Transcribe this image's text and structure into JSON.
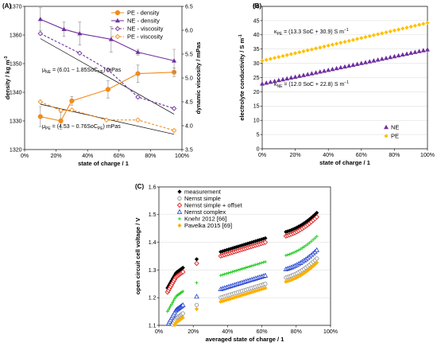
{
  "chart_data": [
    {
      "panel_label": "(A)",
      "type": "scatter",
      "xlabel": "state of charge / 1",
      "ylabel": "density / kg m",
      "ylabel_sup": "-3",
      "y2label": "dynamic viscosity / mPas",
      "xlim": [
        0,
        1
      ],
      "ylim": [
        1320,
        1370
      ],
      "y2lim": [
        3.5,
        6.5
      ],
      "xticks": [
        "0%",
        "20%",
        "40%",
        "60%",
        "80%",
        "100%"
      ],
      "yticks": [
        "1320",
        "1330",
        "1340",
        "1350",
        "1360",
        "1370"
      ],
      "y2ticks": [
        "3.5",
        "4.0",
        "4.5",
        "5.0",
        "5.5",
        "6.0",
        "6.5"
      ],
      "legend_position": "top-right",
      "series": [
        {
          "name": "PE - density",
          "axis": "left",
          "color": "#f28b1c",
          "marker": "circle-filled",
          "line": "solid",
          "x": [
            0.1,
            0.23,
            0.3,
            0.53,
            0.72,
            0.95
          ],
          "y": [
            1331.5,
            1330,
            1337,
            1341,
            1346.5,
            1347
          ],
          "err": [
            3.5,
            3,
            1.5,
            3,
            3,
            1.5
          ]
        },
        {
          "name": "NE - density",
          "axis": "left",
          "color": "#7030a0",
          "marker": "triangle-filled",
          "line": "solid",
          "x": [
            0.1,
            0.25,
            0.35,
            0.55,
            0.72,
            0.95
          ],
          "y": [
            1365.5,
            1362,
            1360.5,
            1358.5,
            1354,
            1351
          ],
          "err": [
            4,
            2.5,
            4,
            4.5,
            1,
            4
          ]
        },
        {
          "name": "NE - viscosity",
          "axis": "right",
          "color": "#7030a0",
          "marker": "diamond-open",
          "line": "dashed",
          "x": [
            0.1,
            0.35,
            0.53,
            0.72,
            0.95
          ],
          "y": [
            5.93,
            5.52,
            5.17,
            4.6,
            4.36
          ]
        },
        {
          "name": "PE - viscosity",
          "axis": "right",
          "color": "#f28b1c",
          "marker": "diamond-open",
          "line": "dashed",
          "x": [
            0.1,
            0.23,
            0.3,
            0.52,
            0.72,
            0.95
          ],
          "y": [
            4.5,
            4.32,
            4.33,
            4.12,
            4.12,
            3.9
          ]
        }
      ],
      "fits": [
        {
          "axis": "right",
          "from": [
            0.1,
            5.825
          ],
          "to": [
            0.95,
            4.24
          ]
        },
        {
          "axis": "right",
          "from": [
            0.1,
            4.45
          ],
          "to": [
            0.95,
            3.82
          ]
        }
      ],
      "annotations": [
        {
          "main": "μ",
          "sub": "NE",
          "rest": " = (6.01 − 1.85SoC",
          "sub2": "NE",
          "end": ") mPas"
        },
        {
          "main": "μ",
          "sub": "PE",
          "rest": " = (4.53 − 0.76SoC",
          "sub2": "PE",
          "end": ") mPas"
        }
      ]
    },
    {
      "panel_label": "(B)",
      "type": "scatter",
      "xlabel": "state of charge / 1",
      "ylabel": "electrolyte conductivity / S m",
      "ylabel_sup": "-1",
      "xlim": [
        0,
        1
      ],
      "ylim": [
        0,
        50
      ],
      "xticks": [
        "0%",
        "20%",
        "40%",
        "60%",
        "80%",
        "100%"
      ],
      "yticks": [
        "0",
        "5",
        "10",
        "15",
        "20",
        "25",
        "30",
        "35",
        "40",
        "45",
        "50"
      ],
      "legend_position": "bottom-right",
      "series": [
        {
          "name": "NE",
          "color": "#7030a0",
          "marker": "triangle-filled",
          "fit": [
            12.0,
            22.8
          ]
        },
        {
          "name": "PE",
          "color": "#ffc000",
          "marker": "diamond-filled",
          "fit": [
            13.3,
            30.9
          ]
        }
      ],
      "annotations": [
        {
          "main": "κ",
          "sub": "PE",
          "rest": " = (13.3 SoC + 30.9) S m",
          "sup": "−1"
        },
        {
          "main": "κ",
          "sub": "NE",
          "rest": " = (12.0 SoC + 22.8) S m",
          "sup": "−1"
        }
      ]
    },
    {
      "panel_label": "(C)",
      "type": "scatter",
      "xlabel": "averaged state of charge / 1",
      "ylabel": "open circuit cell voltage / V",
      "xlim": [
        0,
        1
      ],
      "ylim": [
        1.1,
        1.6
      ],
      "xticks": [
        "0%",
        "20%",
        "40%",
        "60%",
        "80%",
        "100%"
      ],
      "yticks": [
        "1.1",
        "1.2",
        "1.3",
        "1.4",
        "1.5",
        "1.6"
      ],
      "legend_position": "top-left",
      "series": [
        {
          "name": "measurement",
          "color": "#000000",
          "marker": "diamond-filled",
          "offset": 0.0
        },
        {
          "name": "Nernst simple",
          "color": "#8c8c8c",
          "marker": "circle-open",
          "offset": -0.165
        },
        {
          "name": "Nernst simple + offset",
          "color": "#e02020",
          "marker": "diamond-open",
          "offset": -0.015
        },
        {
          "name": "Nernst complex",
          "color": "#1f3fd0",
          "marker": "triangle-open",
          "offset": -0.135
        },
        {
          "name": "Knehr 2012 [66]",
          "color": "#22cc22",
          "marker": "plus",
          "offset": -0.085
        },
        {
          "name": "Pavelka 2015 [69]",
          "color": "#ffb000",
          "marker": "diamond-filled",
          "offset": -0.18
        }
      ]
    }
  ]
}
